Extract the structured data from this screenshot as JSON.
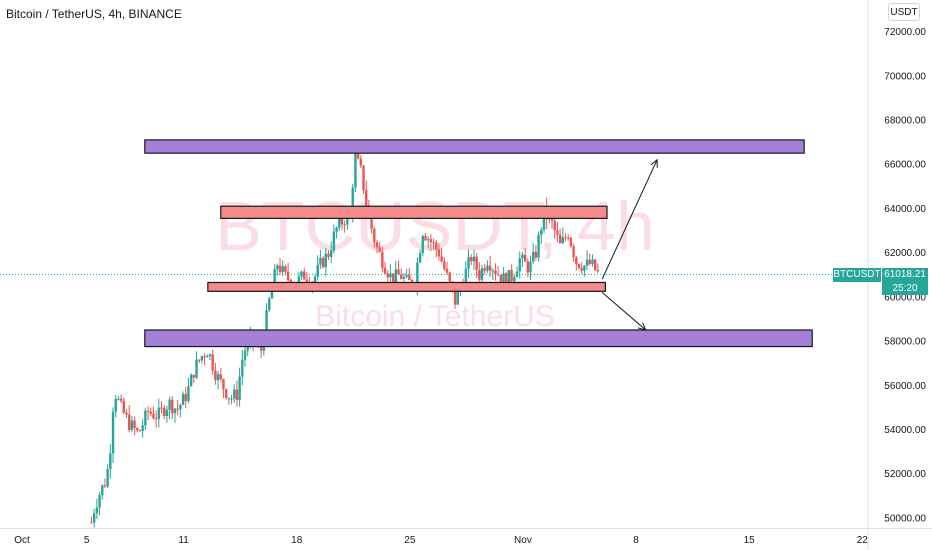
{
  "header": {
    "title": "Bitcoin / TetherUS, 4h, BINANCE"
  },
  "currency_button": {
    "label": "USDT"
  },
  "watermark": {
    "symbol": "BTCUSDT, 4h",
    "description": "Bitcoin / TetherUS"
  },
  "last_price": {
    "symbol": "BTCUSDT",
    "value": "61018.21",
    "countdown": "25:20"
  },
  "colors": {
    "up": "#26a69a",
    "down": "#ef5350",
    "resistance_zone": "#a67fd6",
    "pivot_zone": "#f58b8b",
    "watermark": "#f5c2cc",
    "price_line": "#26a69a"
  },
  "chart_data": {
    "type": "candlestick",
    "symbol": "BTCUSDT",
    "interval": "4h",
    "exchange": "BINANCE",
    "y_axis": {
      "range": [
        49700,
        73000
      ],
      "ticks": [
        "50000.00",
        "52000.00",
        "54000.00",
        "56000.00",
        "58000.00",
        "60000.00",
        "62000.00",
        "64000.00",
        "66000.00",
        "68000.00",
        "70000.00",
        "72000.00"
      ]
    },
    "x_axis": {
      "ticks": [
        {
          "label": "Oct",
          "day": 0
        },
        {
          "label": "5",
          "day": 4
        },
        {
          "label": "11",
          "day": 10
        },
        {
          "label": "18",
          "day": 17
        },
        {
          "label": "25",
          "day": 24
        },
        {
          "label": "Nov",
          "day": 31
        },
        {
          "label": "8",
          "day": 38
        },
        {
          "label": "15",
          "day": 45
        },
        {
          "label": "22",
          "day": 52
        }
      ]
    },
    "zones": [
      {
        "name": "upper-resistance-zone",
        "type": "resistance",
        "from_day": 7.6,
        "to_day": 48.4,
        "price_low": 66500,
        "price_high": 67100
      },
      {
        "name": "upper-pivot-zone",
        "type": "pivot",
        "from_day": 12.3,
        "to_day": 36.2,
        "price_low": 63550,
        "price_high": 64100
      },
      {
        "name": "lower-pivot-zone",
        "type": "pivot",
        "from_day": 11.5,
        "to_day": 36.1,
        "price_low": 60250,
        "price_high": 60650
      },
      {
        "name": "lower-support-zone",
        "type": "support",
        "from_day": 7.6,
        "to_day": 48.9,
        "price_low": 57750,
        "price_high": 58500
      }
    ],
    "arrows": [
      {
        "name": "bullish-projection-arrow",
        "from_day": 35.9,
        "from_price": 60800,
        "to_day": 39.3,
        "to_price": 66200
      },
      {
        "name": "bearish-projection-arrow",
        "from_day": 35.9,
        "from_price": 60200,
        "to_day": 38.6,
        "to_price": 58500
      }
    ],
    "path_anchors": [
      [
        4.3,
        49800
      ],
      [
        4.5,
        50500
      ],
      [
        4.9,
        51300
      ],
      [
        5.1,
        51500
      ],
      [
        5.4,
        52500
      ],
      [
        5.7,
        55800
      ],
      [
        6.1,
        55000
      ],
      [
        6.6,
        54300
      ],
      [
        7.2,
        53800
      ],
      [
        7.8,
        54800
      ],
      [
        8.4,
        54600
      ],
      [
        9.1,
        55200
      ],
      [
        9.6,
        54900
      ],
      [
        10.2,
        55600
      ],
      [
        10.7,
        56800
      ],
      [
        11.1,
        57300
      ],
      [
        11.5,
        57600
      ],
      [
        12.0,
        56500
      ],
      [
        12.4,
        56000
      ],
      [
        12.9,
        55400
      ],
      [
        13.3,
        55600
      ],
      [
        13.7,
        57500
      ],
      [
        14.2,
        58100
      ],
      [
        14.8,
        57600
      ],
      [
        15.3,
        59800
      ],
      [
        15.8,
        61500
      ],
      [
        16.3,
        60900
      ],
      [
        16.9,
        60600
      ],
      [
        17.5,
        61000
      ],
      [
        18.0,
        60700
      ],
      [
        18.5,
        61500
      ],
      [
        19.0,
        62000
      ],
      [
        19.4,
        63000
      ],
      [
        19.9,
        63500
      ],
      [
        20.3,
        63700
      ],
      [
        20.6,
        66400
      ],
      [
        21.0,
        65600
      ],
      [
        21.4,
        63800
      ],
      [
        21.9,
        62300
      ],
      [
        22.4,
        61500
      ],
      [
        22.9,
        60800
      ],
      [
        23.4,
        61000
      ],
      [
        23.9,
        60600
      ],
      [
        24.3,
        60800
      ],
      [
        24.8,
        63000
      ],
      [
        25.3,
        62500
      ],
      [
        25.8,
        62000
      ],
      [
        26.3,
        60900
      ],
      [
        26.8,
        59800
      ],
      [
        27.3,
        60800
      ],
      [
        27.8,
        61800
      ],
      [
        28.3,
        61000
      ],
      [
        28.8,
        61700
      ],
      [
        29.3,
        61200
      ],
      [
        29.8,
        60800
      ],
      [
        30.3,
        60900
      ],
      [
        30.8,
        61700
      ],
      [
        31.4,
        61300
      ],
      [
        31.8,
        62000
      ],
      [
        32.3,
        63800
      ],
      [
        32.8,
        63300
      ],
      [
        33.3,
        62300
      ],
      [
        33.8,
        62900
      ],
      [
        34.3,
        61600
      ],
      [
        34.8,
        61400
      ],
      [
        35.2,
        61500
      ],
      [
        35.7,
        61000
      ]
    ]
  }
}
